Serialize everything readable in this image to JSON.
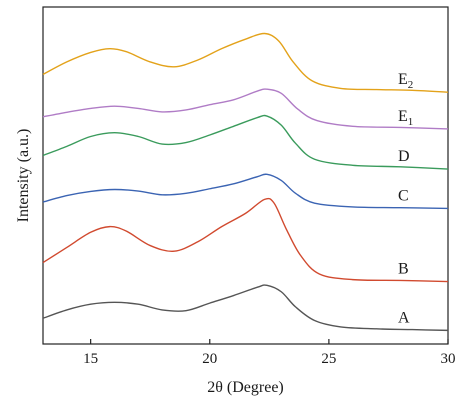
{
  "chart_data": {
    "type": "line",
    "xlabel": "2θ (Degree)",
    "ylabel": "Intensity (a.u.)",
    "xlim": [
      13,
      30
    ],
    "xticks": [
      "15",
      "20",
      "25",
      "30"
    ],
    "yticks": [],
    "grid": false,
    "legend": "none",
    "series": [
      {
        "name": "E2",
        "base": "E",
        "sub": "2",
        "color": "#e3a21a",
        "x": [
          13,
          14,
          15,
          15.8,
          16.5,
          17.5,
          18.5,
          19.5,
          20.5,
          21.5,
          22.3,
          22.9,
          23.5,
          24.3,
          25.5,
          27,
          28.5,
          30
        ],
        "y": [
          6.52,
          6.85,
          7.1,
          7.2,
          7.12,
          6.85,
          6.72,
          6.9,
          7.2,
          7.45,
          7.6,
          7.4,
          6.85,
          6.35,
          6.15,
          6.12,
          6.1,
          6.05
        ]
      },
      {
        "name": "E1",
        "base": "E",
        "sub": "1",
        "color": "#b07cc6",
        "x": [
          13,
          14,
          15,
          16,
          17,
          18,
          19,
          20,
          21,
          22,
          22.4,
          23,
          23.7,
          24.5,
          26,
          28,
          30
        ],
        "y": [
          5.4,
          5.52,
          5.62,
          5.68,
          5.62,
          5.53,
          5.58,
          5.72,
          5.85,
          6.08,
          6.13,
          6.02,
          5.6,
          5.3,
          5.15,
          5.12,
          5.08
        ]
      },
      {
        "name": "D",
        "base": "D",
        "sub": "",
        "color": "#3a9b5c",
        "x": [
          13,
          14,
          15,
          16,
          17,
          18,
          19,
          20,
          21,
          22,
          22.4,
          23,
          23.6,
          24.4,
          26,
          28,
          30
        ],
        "y": [
          4.38,
          4.62,
          4.88,
          4.98,
          4.88,
          4.68,
          4.72,
          4.92,
          5.15,
          5.38,
          5.42,
          5.18,
          4.7,
          4.28,
          4.12,
          4.08,
          4.02
        ]
      },
      {
        "name": "C",
        "base": "C",
        "sub": "",
        "color": "#3b64b3",
        "x": [
          13,
          14,
          15,
          16,
          17,
          18,
          19,
          20,
          21,
          22,
          22.4,
          23,
          23.6,
          24.4,
          26,
          28,
          30
        ],
        "y": [
          3.15,
          3.32,
          3.43,
          3.48,
          3.44,
          3.34,
          3.38,
          3.5,
          3.63,
          3.82,
          3.88,
          3.72,
          3.38,
          3.12,
          3.02,
          3.0,
          2.98
        ]
      },
      {
        "name": "B",
        "base": "B",
        "sub": "",
        "color": "#d14a2f",
        "x": [
          13,
          14,
          15,
          15.8,
          16.5,
          17.5,
          18.5,
          19.5,
          20.5,
          21.5,
          22.3,
          22.7,
          23.2,
          23.8,
          24.6,
          26,
          28,
          30
        ],
        "y": [
          1.55,
          1.95,
          2.35,
          2.5,
          2.38,
          2.0,
          1.85,
          2.1,
          2.5,
          2.85,
          3.22,
          3.12,
          2.45,
          1.75,
          1.25,
          1.1,
          1.08,
          1.05
        ]
      },
      {
        "name": "A",
        "base": "A",
        "sub": "",
        "color": "#555555",
        "x": [
          13,
          14,
          15,
          16,
          17,
          18,
          19,
          20,
          21,
          22,
          22.4,
          23,
          23.6,
          24.4,
          25.5,
          27,
          28.5,
          30
        ],
        "y": [
          0.08,
          0.3,
          0.45,
          0.5,
          0.45,
          0.3,
          0.28,
          0.48,
          0.68,
          0.9,
          0.95,
          0.78,
          0.38,
          0.02,
          -0.15,
          -0.2,
          -0.22,
          -0.24
        ]
      }
    ]
  }
}
